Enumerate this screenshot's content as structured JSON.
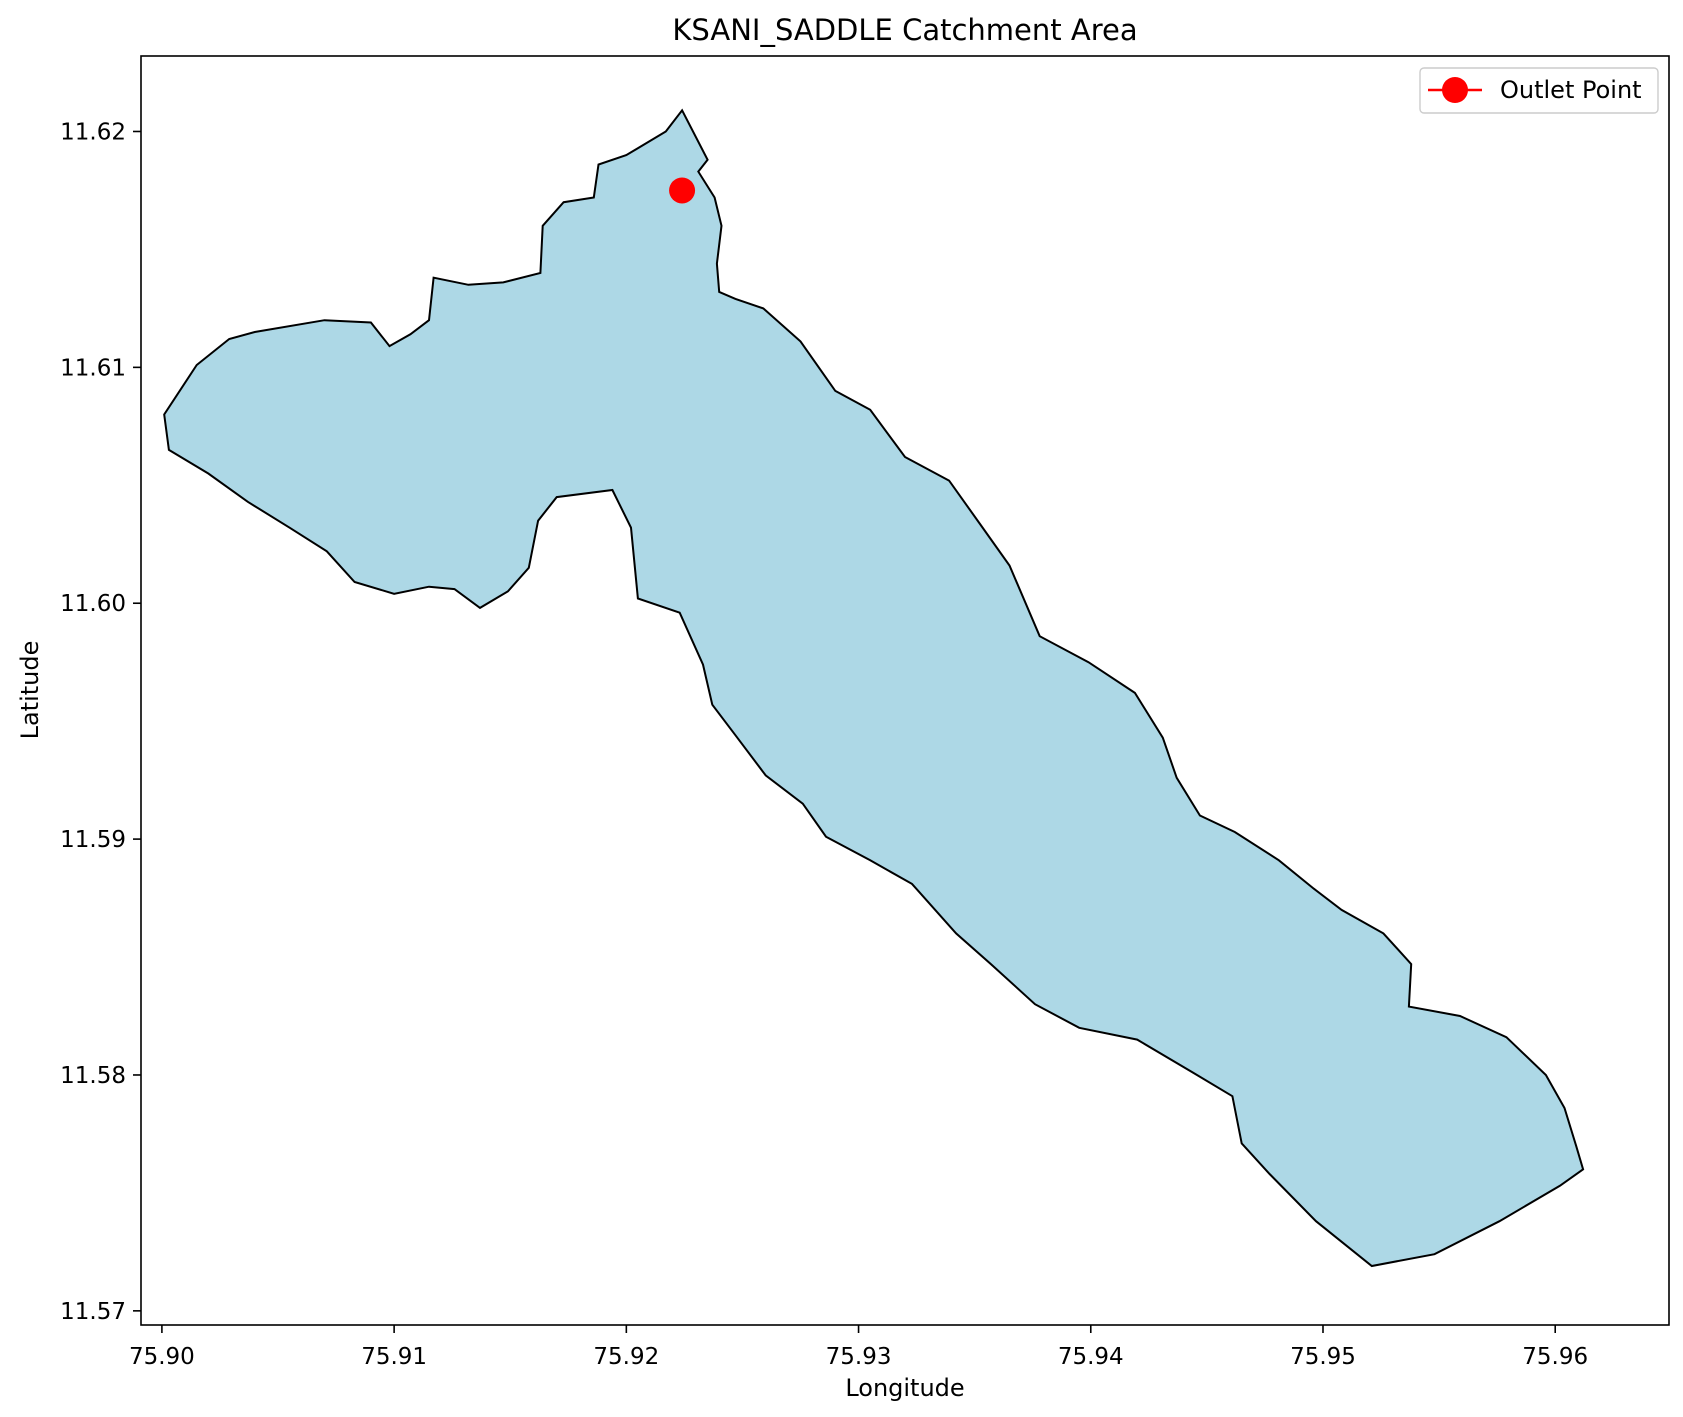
{
  "chart_data": {
    "type": "map",
    "title": "KSANI_SADDLE Catchment Area",
    "xlabel": "Longitude",
    "ylabel": "Latitude",
    "xlim": [
      75.8991,
      75.9649
    ],
    "ylim": [
      11.5694,
      11.6232
    ],
    "x_ticks": [
      75.9,
      75.91,
      75.92,
      75.93,
      75.94,
      75.95,
      75.96
    ],
    "x_tick_labels": [
      "75.90",
      "75.91",
      "75.92",
      "75.93",
      "75.94",
      "75.95",
      "75.96"
    ],
    "y_ticks": [
      11.57,
      11.58,
      11.59,
      11.6,
      11.61,
      11.62
    ],
    "y_tick_labels": [
      "11.57",
      "11.58",
      "11.59",
      "11.60",
      "11.61",
      "11.62"
    ],
    "grid": false,
    "legend_placement": "upper right",
    "legend": [
      {
        "name": "Outlet Point",
        "marker": "circle",
        "color": "#ff0000"
      }
    ],
    "catchment": {
      "fill_color": "#add8e6",
      "edge_color": "#000000",
      "polygon": [
        [
          75.9224,
          11.6209
        ],
        [
          75.9235,
          11.6188
        ],
        [
          75.9231,
          11.6183
        ],
        [
          75.9238,
          11.6172
        ],
        [
          75.9241,
          11.616
        ],
        [
          75.9239,
          11.6144
        ],
        [
          75.924,
          11.6132
        ],
        [
          75.9247,
          11.6129
        ],
        [
          75.9259,
          11.6125
        ],
        [
          75.9275,
          11.6111
        ],
        [
          75.929,
          11.609
        ],
        [
          75.9305,
          11.6082
        ],
        [
          75.932,
          11.6062
        ],
        [
          75.9339,
          11.6052
        ],
        [
          75.9352,
          11.6034
        ],
        [
          75.9365,
          11.6016
        ],
        [
          75.9378,
          11.5986
        ],
        [
          75.9399,
          11.5975
        ],
        [
          75.9419,
          11.5962
        ],
        [
          75.9431,
          11.5943
        ],
        [
          75.9437,
          11.5926
        ],
        [
          75.9447,
          11.591
        ],
        [
          75.9462,
          11.5903
        ],
        [
          75.9481,
          11.5891
        ],
        [
          75.9496,
          11.5879
        ],
        [
          75.9508,
          11.587
        ],
        [
          75.9526,
          11.586
        ],
        [
          75.9538,
          11.5847
        ],
        [
          75.9537,
          11.5829
        ],
        [
          75.9559,
          11.5825
        ],
        [
          75.9579,
          11.5816
        ],
        [
          75.9596,
          11.58
        ],
        [
          75.9604,
          11.5786
        ],
        [
          75.9609,
          11.577
        ],
        [
          75.9612,
          11.576
        ],
        [
          75.9602,
          11.5753
        ],
        [
          75.9576,
          11.5738
        ],
        [
          75.9548,
          11.5724
        ],
        [
          75.9521,
          11.5719
        ],
        [
          75.9497,
          11.5738
        ],
        [
          75.9477,
          11.5758
        ],
        [
          75.9465,
          11.5771
        ],
        [
          75.9461,
          11.5791
        ],
        [
          75.9444,
          11.5801
        ],
        [
          75.942,
          11.5815
        ],
        [
          75.9395,
          11.582
        ],
        [
          75.9376,
          11.583
        ],
        [
          75.9357,
          11.5847
        ],
        [
          75.9342,
          11.586
        ],
        [
          75.9323,
          11.5881
        ],
        [
          75.9305,
          11.5891
        ],
        [
          75.9286,
          11.5901
        ],
        [
          75.9276,
          11.5915
        ],
        [
          75.926,
          11.5927
        ],
        [
          75.9247,
          11.5944
        ],
        [
          75.9237,
          11.5957
        ],
        [
          75.9233,
          11.5974
        ],
        [
          75.9223,
          11.5996
        ],
        [
          75.9205,
          11.6002
        ],
        [
          75.9202,
          11.6032
        ],
        [
          75.9197,
          11.6042
        ],
        [
          75.9194,
          11.6048
        ],
        [
          75.917,
          11.6045
        ],
        [
          75.9162,
          11.6035
        ],
        [
          75.9158,
          11.6015
        ],
        [
          75.9149,
          11.6005
        ],
        [
          75.9137,
          11.5998
        ],
        [
          75.9126,
          11.6006
        ],
        [
          75.9115,
          11.6007
        ],
        [
          75.91,
          11.6004
        ],
        [
          75.9083,
          11.6009
        ],
        [
          75.9071,
          11.6022
        ],
        [
          75.9055,
          11.6032
        ],
        [
          75.9037,
          11.6043
        ],
        [
          75.902,
          11.6055
        ],
        [
          75.9003,
          11.6065
        ],
        [
          75.9001,
          11.608
        ],
        [
          75.9015,
          11.6101
        ],
        [
          75.9029,
          11.6112
        ],
        [
          75.904,
          11.6115
        ],
        [
          75.907,
          11.612
        ],
        [
          75.909,
          11.6119
        ],
        [
          75.9098,
          11.6109
        ],
        [
          75.9107,
          11.6114
        ],
        [
          75.9115,
          11.612
        ],
        [
          75.9117,
          11.6138
        ],
        [
          75.9132,
          11.6135
        ],
        [
          75.9147,
          11.6136
        ],
        [
          75.9163,
          11.614
        ],
        [
          75.9164,
          11.616
        ],
        [
          75.9173,
          11.617
        ],
        [
          75.9186,
          11.6172
        ],
        [
          75.9188,
          11.6186
        ],
        [
          75.92,
          11.619
        ],
        [
          75.9217,
          11.62
        ]
      ]
    },
    "outlet_point": {
      "name": "Outlet Point",
      "lon": 75.9224,
      "lat": 11.6175,
      "color": "#ff0000"
    }
  }
}
